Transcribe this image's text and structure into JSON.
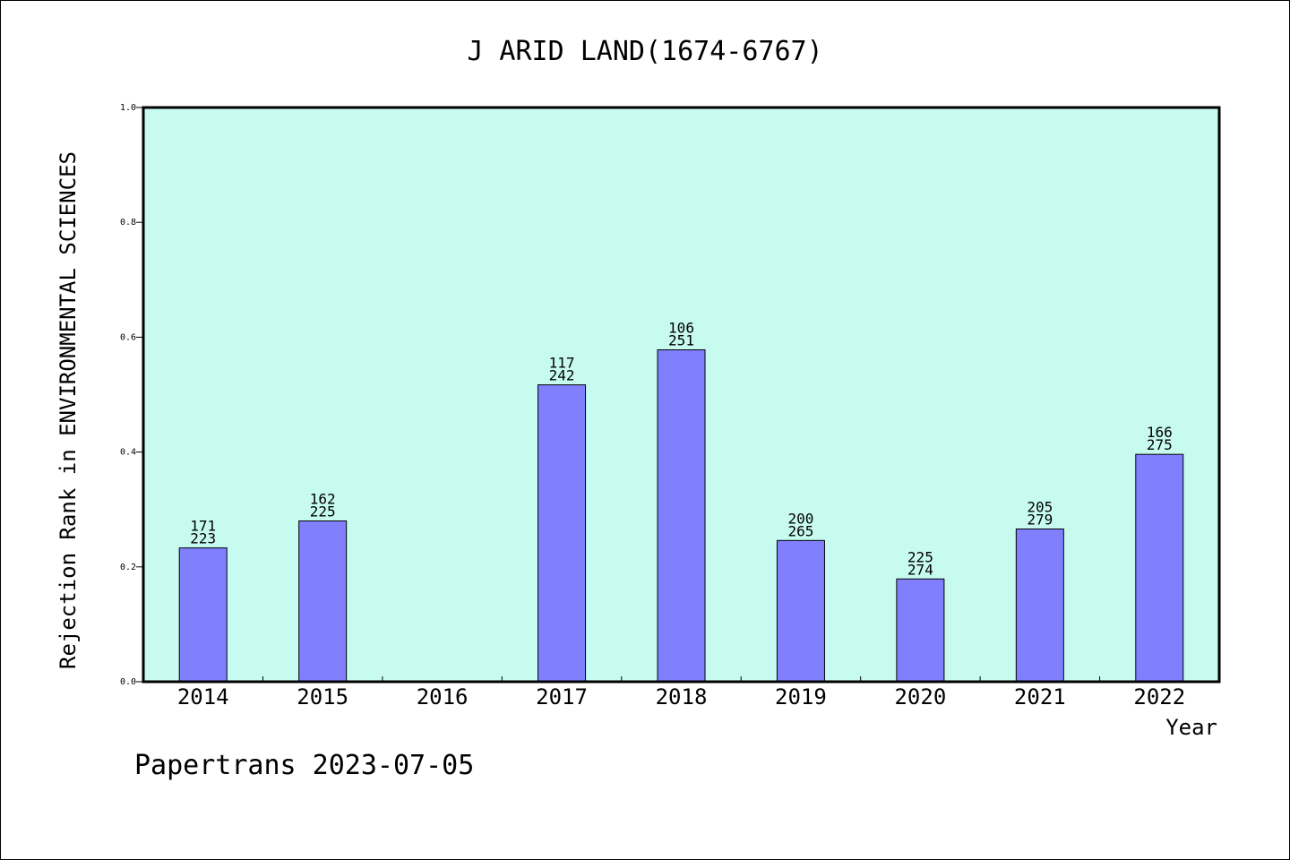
{
  "chart_data": {
    "type": "bar",
    "title": "J ARID LAND(1674-6767)",
    "xlabel": "Year",
    "ylabel": "Rejection Rank in ENVIRONMENTAL SCIENCES",
    "ylim": [
      0,
      1.0
    ],
    "yticks": [
      "0.0",
      "0.2",
      "0.4",
      "0.6",
      "0.8",
      "1.0"
    ],
    "categories": [
      "2014",
      "2015",
      "2016",
      "2017",
      "2018",
      "2019",
      "2020",
      "2021",
      "2022"
    ],
    "values": [
      0.233,
      0.28,
      null,
      0.517,
      0.578,
      0.246,
      0.179,
      0.266,
      0.396
    ],
    "labels_top": [
      "171",
      "162",
      "",
      "117",
      "106",
      "200",
      "225",
      "205",
      "166"
    ],
    "labels_bottom": [
      "223",
      "225",
      "",
      "242",
      "251",
      "265",
      "274",
      "279",
      "275"
    ],
    "grid": false,
    "colors": {
      "plot_bg": "#c8fbef",
      "bar": "#8080ff",
      "bar_edge": "#000000"
    }
  },
  "footer": "Papertrans 2023-07-05"
}
